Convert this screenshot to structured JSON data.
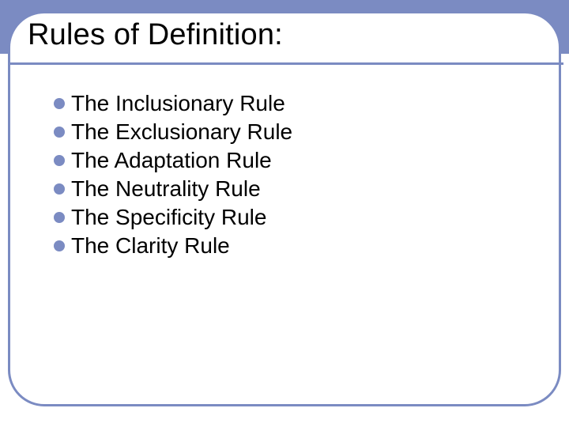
{
  "colors": {
    "accent": "#7b8bc2",
    "background": "#ffffff",
    "text": "#000000"
  },
  "title": "Rules of Definition:",
  "title_fontsize": 38,
  "bullet_fontsize": 28,
  "bullets": [
    "The Inclusionary Rule",
    "The Exclusionary Rule",
    "The Adaptation Rule",
    "The Neutrality Rule",
    "The Specificity Rule",
    "The Clarity Rule"
  ]
}
